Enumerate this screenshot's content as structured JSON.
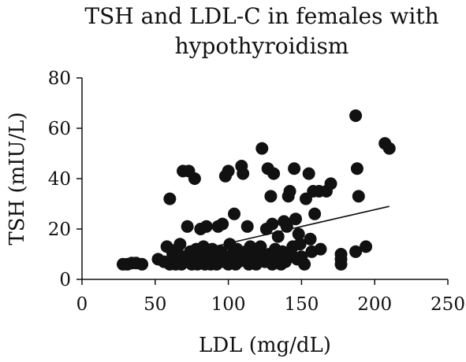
{
  "chart_data": {
    "type": "scatter",
    "title_lines": [
      "TSH and LDL-C in females with",
      "hypothyroidism"
    ],
    "xlabel": "LDL (mg/dL)",
    "ylabel": "TSH (mIU/L)",
    "xlim": [
      0,
      250
    ],
    "ylim": [
      0,
      80
    ],
    "x_ticks": [
      0,
      50,
      100,
      150,
      200,
      250
    ],
    "y_ticks": [
      0,
      20,
      40,
      60,
      80
    ],
    "grid": false,
    "legend": "none",
    "marker_color": "#111111",
    "trendline": {
      "x": [
        60,
        210
      ],
      "y": [
        9,
        29
      ]
    },
    "points": [
      {
        "x": 28,
        "y": 6
      },
      {
        "x": 31,
        "y": 6
      },
      {
        "x": 34,
        "y": 6.5
      },
      {
        "x": 37,
        "y": 6.5
      },
      {
        "x": 41,
        "y": 6
      },
      {
        "x": 52,
        "y": 8
      },
      {
        "x": 56,
        "y": 7
      },
      {
        "x": 58,
        "y": 13
      },
      {
        "x": 60,
        "y": 32
      },
      {
        "x": 60,
        "y": 6
      },
      {
        "x": 62,
        "y": 10
      },
      {
        "x": 64,
        "y": 6
      },
      {
        "x": 65,
        "y": 12
      },
      {
        "x": 66,
        "y": 8
      },
      {
        "x": 67,
        "y": 14
      },
      {
        "x": 68,
        "y": 6
      },
      {
        "x": 69,
        "y": 43
      },
      {
        "x": 70,
        "y": 9
      },
      {
        "x": 72,
        "y": 21
      },
      {
        "x": 72,
        "y": 7
      },
      {
        "x": 73,
        "y": 43
      },
      {
        "x": 74,
        "y": 11
      },
      {
        "x": 75,
        "y": 6
      },
      {
        "x": 76,
        "y": 8
      },
      {
        "x": 77,
        "y": 40
      },
      {
        "x": 78,
        "y": 12
      },
      {
        "x": 79,
        "y": 6
      },
      {
        "x": 80,
        "y": 9
      },
      {
        "x": 81,
        "y": 20
      },
      {
        "x": 82,
        "y": 7
      },
      {
        "x": 83,
        "y": 13
      },
      {
        "x": 84,
        "y": 6
      },
      {
        "x": 85,
        "y": 21
      },
      {
        "x": 86,
        "y": 8
      },
      {
        "x": 87,
        "y": 10
      },
      {
        "x": 88,
        "y": 6
      },
      {
        "x": 89,
        "y": 12
      },
      {
        "x": 90,
        "y": 7
      },
      {
        "x": 91,
        "y": 9
      },
      {
        "x": 92,
        "y": 6
      },
      {
        "x": 93,
        "y": 21
      },
      {
        "x": 94,
        "y": 8
      },
      {
        "x": 95,
        "y": 11
      },
      {
        "x": 96,
        "y": 22
      },
      {
        "x": 97,
        "y": 7
      },
      {
        "x": 98,
        "y": 41
      },
      {
        "x": 99,
        "y": 9
      },
      {
        "x": 100,
        "y": 43
      },
      {
        "x": 100,
        "y": 6
      },
      {
        "x": 101,
        "y": 14
      },
      {
        "x": 102,
        "y": 8
      },
      {
        "x": 103,
        "y": 10
      },
      {
        "x": 104,
        "y": 26
      },
      {
        "x": 105,
        "y": 6
      },
      {
        "x": 106,
        "y": 12
      },
      {
        "x": 107,
        "y": 7
      },
      {
        "x": 108,
        "y": 9
      },
      {
        "x": 109,
        "y": 45
      },
      {
        "x": 110,
        "y": 42
      },
      {
        "x": 111,
        "y": 8
      },
      {
        "x": 112,
        "y": 11
      },
      {
        "x": 113,
        "y": 21
      },
      {
        "x": 114,
        "y": 6
      },
      {
        "x": 115,
        "y": 13
      },
      {
        "x": 116,
        "y": 9
      },
      {
        "x": 117,
        "y": 7
      },
      {
        "x": 118,
        "y": 10
      },
      {
        "x": 119,
        "y": 6
      },
      {
        "x": 120,
        "y": 12
      },
      {
        "x": 121,
        "y": 8
      },
      {
        "x": 122,
        "y": 13
      },
      {
        "x": 123,
        "y": 52
      },
      {
        "x": 124,
        "y": 9
      },
      {
        "x": 125,
        "y": 7
      },
      {
        "x": 126,
        "y": 20
      },
      {
        "x": 127,
        "y": 44
      },
      {
        "x": 128,
        "y": 10
      },
      {
        "x": 129,
        "y": 33
      },
      {
        "x": 130,
        "y": 6
      },
      {
        "x": 130,
        "y": 22
      },
      {
        "x": 131,
        "y": 42
      },
      {
        "x": 132,
        "y": 12
      },
      {
        "x": 133,
        "y": 8
      },
      {
        "x": 134,
        "y": 17
      },
      {
        "x": 135,
        "y": 9
      },
      {
        "x": 136,
        "y": 6
      },
      {
        "x": 137,
        "y": 11
      },
      {
        "x": 138,
        "y": 23
      },
      {
        "x": 139,
        "y": 7
      },
      {
        "x": 140,
        "y": 21
      },
      {
        "x": 141,
        "y": 33
      },
      {
        "x": 142,
        "y": 35
      },
      {
        "x": 143,
        "y": 10
      },
      {
        "x": 144,
        "y": 13
      },
      {
        "x": 145,
        "y": 44
      },
      {
        "x": 146,
        "y": 24
      },
      {
        "x": 147,
        "y": 8
      },
      {
        "x": 148,
        "y": 18
      },
      {
        "x": 149,
        "y": 14
      },
      {
        "x": 150,
        "y": 9
      },
      {
        "x": 152,
        "y": 6
      },
      {
        "x": 153,
        "y": 32
      },
      {
        "x": 155,
        "y": 42
      },
      {
        "x": 156,
        "y": 16
      },
      {
        "x": 157,
        "y": 11
      },
      {
        "x": 158,
        "y": 35
      },
      {
        "x": 159,
        "y": 26
      },
      {
        "x": 162,
        "y": 35
      },
      {
        "x": 163,
        "y": 12
      },
      {
        "x": 167,
        "y": 35
      },
      {
        "x": 170,
        "y": 38
      },
      {
        "x": 177,
        "y": 6
      },
      {
        "x": 177,
        "y": 8
      },
      {
        "x": 177,
        "y": 10
      },
      {
        "x": 187,
        "y": 65
      },
      {
        "x": 187,
        "y": 11
      },
      {
        "x": 188,
        "y": 44
      },
      {
        "x": 189,
        "y": 33
      },
      {
        "x": 194,
        "y": 13
      },
      {
        "x": 207,
        "y": 54
      },
      {
        "x": 210,
        "y": 52
      }
    ]
  }
}
